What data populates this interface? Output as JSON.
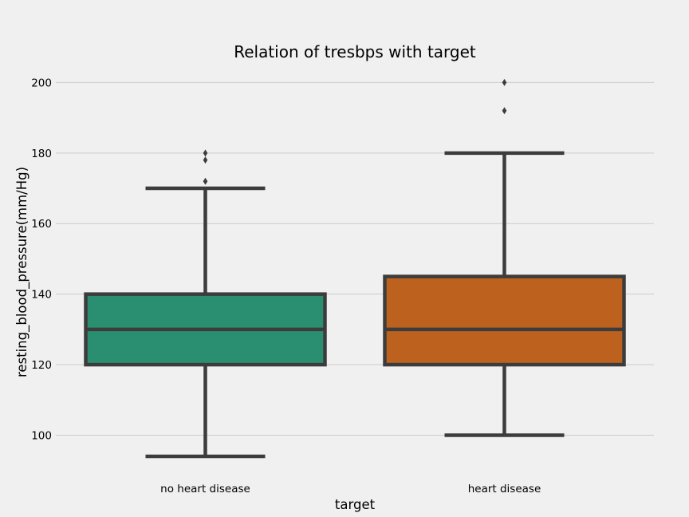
{
  "chart_data": {
    "type": "box",
    "title": "Relation of tresbps with target",
    "xlabel": "target",
    "ylabel": "resting_blood_pressure(mm/Hg)",
    "categories": [
      "no heart disease",
      "heart disease"
    ],
    "yticks": [
      100,
      120,
      140,
      160,
      180,
      200
    ],
    "ylim": [
      89.7,
      205.3
    ],
    "grid": true,
    "legend": "none",
    "boxes": [
      {
        "category": "no heart disease",
        "whisker_low": 94,
        "q1": 120,
        "median": 130,
        "q3": 140,
        "whisker_high": 170,
        "outliers": [
          172,
          178,
          180
        ],
        "color": "#2a8f70"
      },
      {
        "category": "heart disease",
        "whisker_low": 100,
        "q1": 120,
        "median": 130,
        "q3": 145,
        "whisker_high": 180,
        "outliers": [
          192,
          200
        ],
        "color": "#bd621e"
      }
    ]
  },
  "colors": {
    "background": "#f0f0f0",
    "grid": "#cbcbcb",
    "box_edge": "#3c3c3c"
  }
}
